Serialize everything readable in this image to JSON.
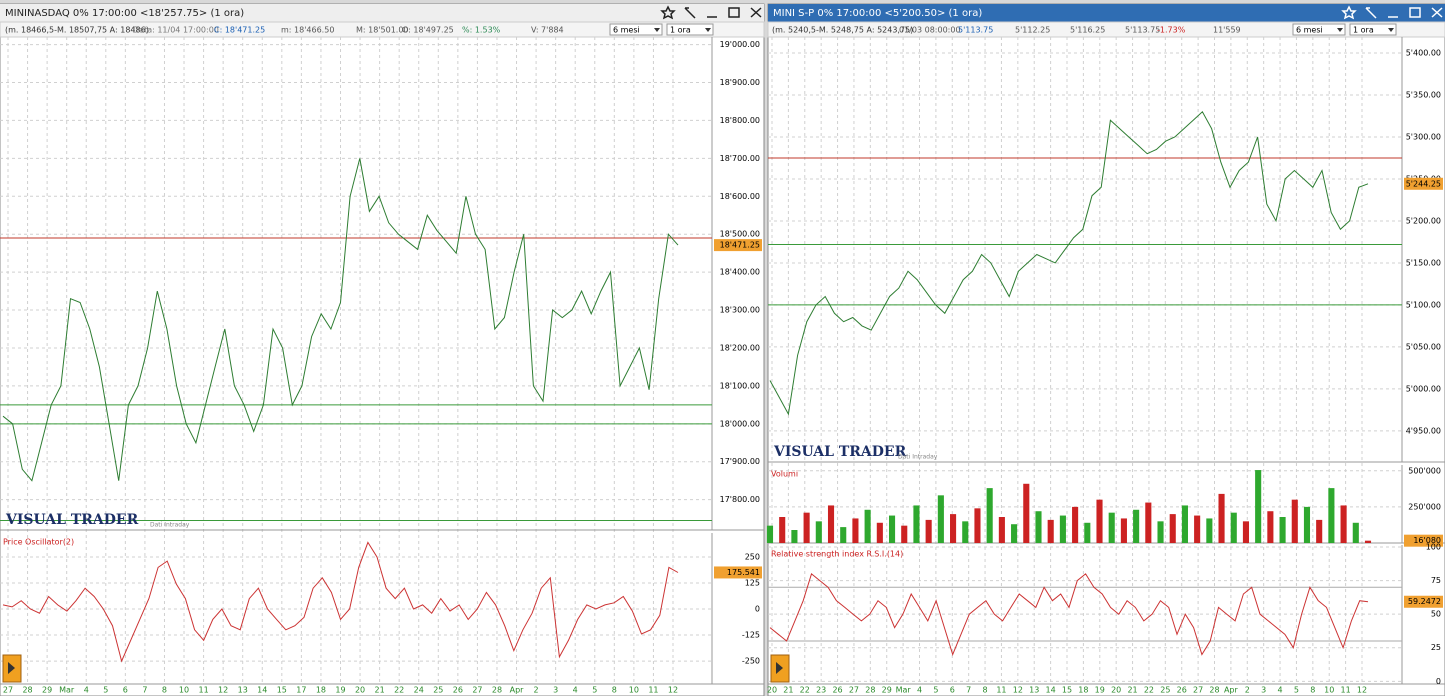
{
  "panels": [
    {
      "title": "MININASDAQ 0% 17:00:00  <18'257.75>  (1 ora)",
      "title_bar_color": "#eeeeee",
      "title_text_color": "#222222",
      "info": [
        "(m. 18466,5-M. 18507,75 A: 18486)",
        "Data: 11/04 17:00:00",
        "C: 18'471.25",
        "m: 18'466.50",
        "M: 18'501.00",
        "O: 18'497.25",
        "%: 1.53%",
        "V: 7'884"
      ],
      "info_colors": [
        "#333333",
        "#777777",
        "#1a5fb4",
        "#555555",
        "#555555",
        "#555555",
        "#2e8b57",
        "#555555"
      ],
      "period": "6 mesi",
      "interval": "1 ora",
      "brand": "VISUAL TRADER",
      "brand_note": "Dati Intraday",
      "x_labels": [
        "27",
        "28",
        "29",
        "Mar",
        "4",
        "5",
        "6",
        "7",
        "8",
        "10",
        "11",
        "12",
        "13",
        "14",
        "15",
        "17",
        "18",
        "19",
        "20",
        "21",
        "22",
        "24",
        "25",
        "26",
        "27",
        "28",
        "Apr",
        "2",
        "3",
        "4",
        "5",
        "8",
        "10",
        "11",
        "12"
      ],
      "charts": [
        {
          "type": "line",
          "color": "#2e7d32",
          "values": [
            18020,
            18000,
            17880,
            17850,
            17950,
            18050,
            18100,
            18330,
            18320,
            18250,
            18150,
            18000,
            17850,
            18050,
            18100,
            18200,
            18350,
            18250,
            18100,
            18000,
            17950,
            18050,
            18150,
            18250,
            18100,
            18050,
            17980,
            18050,
            18250,
            18200,
            18050,
            18100,
            18230,
            18290,
            18250,
            18320,
            18600,
            18700,
            18560,
            18600,
            18530,
            18500,
            18480,
            18460,
            18550,
            18510,
            18480,
            18450,
            18600,
            18500,
            18460,
            18250,
            18280,
            18400,
            18500,
            18100,
            18060,
            18300,
            18280,
            18300,
            18350,
            18290,
            18350,
            18400,
            18100,
            18150,
            18200,
            18090,
            18330,
            18500,
            18471.25
          ],
          "ylim": [
            17720,
            19020
          ],
          "yticks": [
            {
              "value": 19000,
              "label": "19'000.00"
            },
            {
              "value": 18900,
              "label": "18'900.00"
            },
            {
              "value": 18800,
              "label": "18'800.00"
            },
            {
              "value": 18700,
              "label": "18'700.00"
            },
            {
              "value": 18600,
              "label": "18'600.00"
            },
            {
              "value": 18500,
              "label": "18'500.00"
            },
            {
              "value": 18400,
              "label": "18'400.00"
            },
            {
              "value": 18300,
              "label": "18'300.00"
            },
            {
              "value": 18200,
              "label": "18'200.00"
            },
            {
              "value": 18100,
              "label": "18'100.00"
            },
            {
              "value": 18000,
              "label": "18'000.00"
            },
            {
              "value": 17900,
              "label": "17'900.00"
            },
            {
              "value": 17800,
              "label": "17'800.00"
            }
          ],
          "hlines": [
            18490,
            18050,
            18000,
            17745
          ],
          "hline_colors": [
            "#c0392b",
            "#3a9a3a",
            "#3a9a3a",
            "#3a9a3a"
          ],
          "last": {
            "value": 18471.25,
            "label": "18'471.25"
          },
          "last_color": "#f0a030"
        },
        {
          "type": "line",
          "title": "Price Oscillator(2)",
          "color": "#cc3333",
          "values": [
            20,
            10,
            40,
            0,
            -20,
            60,
            20,
            -10,
            40,
            100,
            60,
            0,
            -80,
            -250,
            -150,
            -50,
            50,
            200,
            230,
            120,
            50,
            -100,
            -150,
            -50,
            0,
            -80,
            -100,
            50,
            100,
            0,
            -50,
            -100,
            -80,
            -40,
            100,
            150,
            80,
            -50,
            0,
            200,
            320,
            250,
            100,
            50,
            100,
            0,
            20,
            -20,
            50,
            -10,
            20,
            -50,
            0,
            80,
            20,
            -80,
            -200,
            -100,
            -20,
            100,
            150,
            -230,
            -150,
            -50,
            20,
            0,
            20,
            30,
            60,
            -10,
            -120,
            -100,
            -30,
            200,
            175.541
          ],
          "ylim": [
            -360,
            365
          ],
          "yticks": [
            250,
            125,
            0,
            -125,
            -250
          ],
          "last": {
            "value": 175.541,
            "label": "175.541"
          },
          "last_color": "#f0a030"
        }
      ]
    },
    {
      "title": "MINI S-P 0% 17:00:00  <5'200.50>  (1 ora)",
      "title_bar_color": "#2f6db3",
      "title_text_color": "#ffffff",
      "info": [
        "(m. 5240,5-M. 5248,75 A: 5243,75)",
        "01/03 08:00:00",
        "5'113.75",
        "5'112.25",
        "5'116.25",
        "5'113.75",
        "-1.73%",
        "11'559"
      ],
      "info_colors": [
        "#333333",
        "#555555",
        "#1a5fb4",
        "#555555",
        "#555555",
        "#555555",
        "#cc2222",
        "#555555"
      ],
      "period": "6 mesi",
      "interval": "1 ora",
      "brand": "VISUAL TRADER",
      "brand_note": "Dati Intraday",
      "x_labels": [
        "20",
        "21",
        "22",
        "23",
        "26",
        "27",
        "28",
        "29",
        "Mar",
        "4",
        "5",
        "6",
        "7",
        "8",
        "11",
        "12",
        "13",
        "14",
        "15",
        "18",
        "19",
        "20",
        "21",
        "22",
        "25",
        "26",
        "27",
        "28",
        "Apr",
        "2",
        "3",
        "4",
        "5",
        "8",
        "10",
        "11",
        "12"
      ],
      "charts": [
        {
          "type": "line",
          "color": "#2e7d32",
          "values": [
            5010,
            4990,
            4970,
            5040,
            5080,
            5100,
            5110,
            5090,
            5080,
            5085,
            5075,
            5070,
            5090,
            5110,
            5120,
            5140,
            5130,
            5115,
            5100,
            5090,
            5110,
            5130,
            5140,
            5160,
            5150,
            5130,
            5110,
            5140,
            5150,
            5160,
            5155,
            5150,
            5165,
            5180,
            5190,
            5230,
            5240,
            5320,
            5310,
            5300,
            5290,
            5280,
            5285,
            5295,
            5300,
            5310,
            5320,
            5330,
            5310,
            5270,
            5240,
            5260,
            5270,
            5300,
            5220,
            5200,
            5250,
            5260,
            5250,
            5240,
            5260,
            5210,
            5190,
            5200,
            5240,
            5244.25
          ],
          "ylim": [
            4913,
            5419
          ],
          "yticks": [
            {
              "value": 5400,
              "label": "5'400.00"
            },
            {
              "value": 5350,
              "label": "5'350.00"
            },
            {
              "value": 5300,
              "label": "5'300.00"
            },
            {
              "value": 5250,
              "label": "5'250.00"
            },
            {
              "value": 5200,
              "label": "5'200.00"
            },
            {
              "value": 5150,
              "label": "5'150.00"
            },
            {
              "value": 5100,
              "label": "5'100.00"
            },
            {
              "value": 5050,
              "label": "5'050.00"
            },
            {
              "value": 5000,
              "label": "5'000.00"
            },
            {
              "value": 4950,
              "label": "4'950.00"
            }
          ],
          "hlines": [
            5275,
            5172,
            5100
          ],
          "hline_colors": [
            "#c0392b",
            "#3a9a3a",
            "#3a9a3a"
          ],
          "last": {
            "value": 5244.25,
            "label": "5'244.25"
          },
          "last_color": "#f0a030"
        },
        {
          "type": "bar",
          "title": "Volumi",
          "colors": [
            "#2ea82e",
            "#cc2222"
          ],
          "values": [
            120000,
            180000,
            90000,
            210000,
            150000,
            260000,
            110000,
            170000,
            230000,
            140000,
            190000,
            120000,
            260000,
            160000,
            330000,
            200000,
            150000,
            240000,
            380000,
            180000,
            130000,
            410000,
            220000,
            160000,
            190000,
            250000,
            140000,
            300000,
            210000,
            170000,
            230000,
            280000,
            150000,
            200000,
            260000,
            190000,
            170000,
            340000,
            210000,
            150000,
            505000,
            220000,
            180000,
            300000,
            250000,
            160000,
            380000,
            260000,
            140000,
            16080
          ],
          "ylim": [
            0,
            540000
          ],
          "yticks": [
            {
              "value": 500000,
              "label": "500'000"
            },
            {
              "value": 250000,
              "label": "250'000"
            }
          ],
          "last": {
            "value": 16080,
            "label": "16'080"
          },
          "last_color": "#f0a030"
        },
        {
          "type": "line",
          "title": "Relative strength index R.S.I.(14)",
          "color": "#cc3333",
          "values": [
            40,
            35,
            30,
            45,
            60,
            80,
            75,
            70,
            60,
            55,
            50,
            45,
            50,
            60,
            55,
            40,
            50,
            65,
            55,
            45,
            60,
            40,
            20,
            35,
            50,
            55,
            60,
            50,
            45,
            55,
            65,
            60,
            55,
            70,
            60,
            65,
            55,
            75,
            80,
            70,
            65,
            55,
            50,
            60,
            55,
            45,
            50,
            60,
            55,
            35,
            50,
            40,
            20,
            30,
            55,
            50,
            45,
            65,
            70,
            50,
            45,
            40,
            35,
            25,
            50,
            70,
            60,
            55,
            40,
            25,
            45,
            60,
            59.2472
          ],
          "ylim": [
            -2,
            101.5
          ],
          "yticks": [
            100,
            75,
            50,
            25,
            0
          ],
          "hlines": [
            70,
            30
          ],
          "hline_colors": [
            "#aaaaaa",
            "#aaaaaa"
          ],
          "last": {
            "value": 59.2472,
            "label": "59.2472"
          },
          "last_color": "#f0a030"
        }
      ]
    }
  ]
}
